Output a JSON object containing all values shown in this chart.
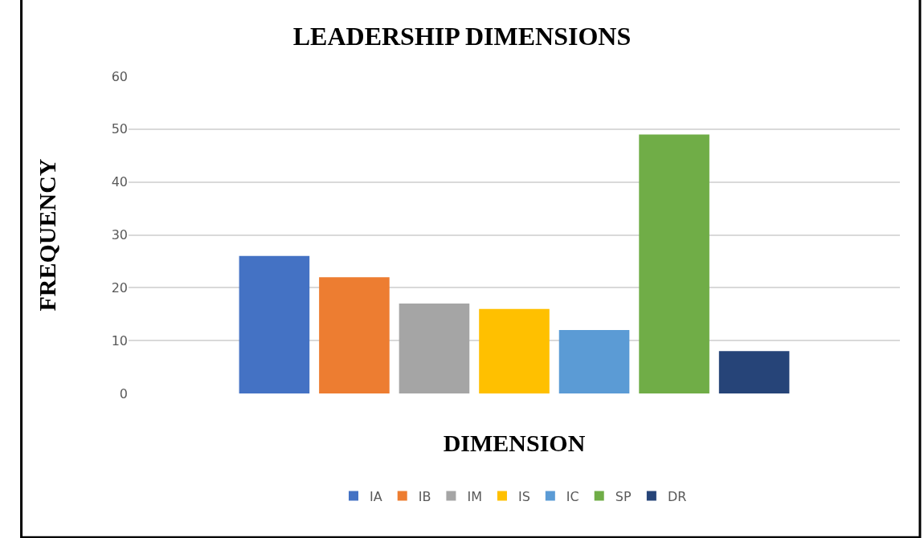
{
  "chart_data": {
    "type": "bar",
    "title": "LEADERSHIP DIMENSIONS",
    "xlabel": "DIMENSION",
    "ylabel": "FREQUENCY",
    "categories": [
      null
    ],
    "series": [
      {
        "name": "IA",
        "color": "#4472c4",
        "values": [
          26
        ]
      },
      {
        "name": "IB",
        "color": "#ed7d31",
        "values": [
          22
        ]
      },
      {
        "name": "IM",
        "color": "#a5a5a5",
        "values": [
          17
        ]
      },
      {
        "name": "IS",
        "color": "#ffc000",
        "values": [
          16
        ]
      },
      {
        "name": "IC",
        "color": "#5b9bd5",
        "values": [
          12
        ]
      },
      {
        "name": "SP",
        "color": "#70ad47",
        "values": [
          49
        ]
      },
      {
        "name": "DR",
        "color": "#264478",
        "values": [
          8
        ]
      }
    ],
    "ylim": [
      0,
      60
    ],
    "yticks": [
      0,
      10,
      20,
      30,
      40,
      50,
      60
    ],
    "grid": "y",
    "legend": "bottom"
  }
}
